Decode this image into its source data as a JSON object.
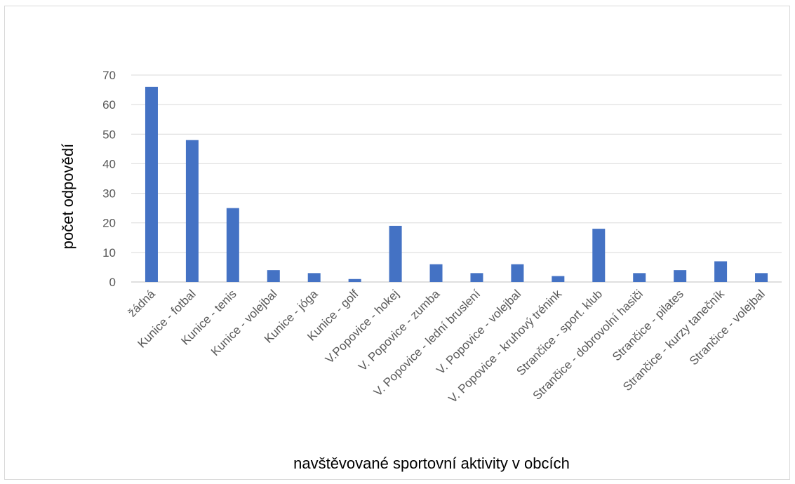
{
  "chart_data": {
    "type": "bar",
    "title": "",
    "xlabel": "navštěvované sportovní aktivity v obcích",
    "ylabel": "počet odpovědí",
    "ylim": [
      0,
      70
    ],
    "yticks": [
      0,
      10,
      20,
      30,
      40,
      50,
      60,
      70
    ],
    "grid": true,
    "legend": "none",
    "bar_color": "#4472c4",
    "categories": [
      "žádná",
      "Kunice - fotbal",
      "Kunice - tenis",
      "Kunice - volejbal",
      "Kunice - jóga",
      "Kunice - golf",
      "V.Popovice - hokej",
      "V. Popovice - zumba",
      "V. Popovice - lední bruslení",
      "V. Popovice - volejbal",
      "V. Popovice - kruhový trénink",
      "Strančice - sport. klub",
      "Strančice - dobrovolní hasiči",
      "Strančice - pilates",
      "Strančice - kurzy tanečník",
      "Strančice - volejbal"
    ],
    "values": [
      66,
      48,
      25,
      4,
      3,
      1,
      19,
      6,
      3,
      6,
      2,
      18,
      3,
      4,
      7,
      3
    ]
  }
}
